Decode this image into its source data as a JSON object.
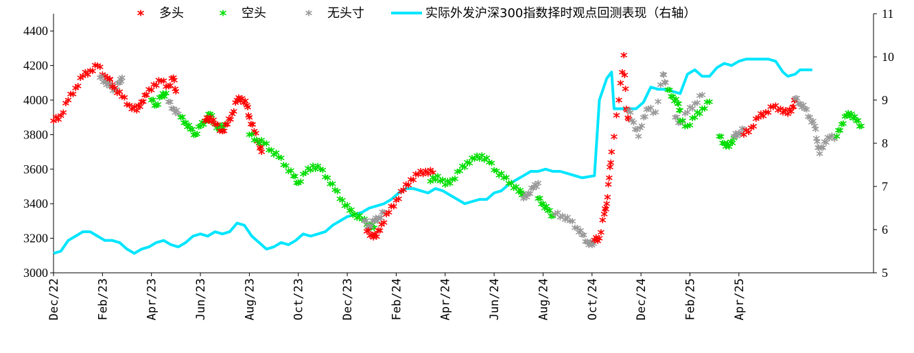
{
  "chart_data": {
    "type": "scatter",
    "left_axis": {
      "range": [
        3000,
        4500
      ],
      "ticks": [
        3000,
        3200,
        3400,
        3600,
        3800,
        4000,
        4200,
        4400
      ]
    },
    "right_axis": {
      "range": [
        5,
        11
      ],
      "ticks": [
        5,
        6,
        7,
        8,
        9,
        10,
        11
      ]
    },
    "x_axis": {
      "range_months": [
        0,
        30
      ],
      "tick_labels": [
        "Dec/22",
        "Feb/23",
        "Apr/23",
        "Jun/23",
        "Aug/23",
        "Oct/23",
        "Dec/23",
        "Feb/24",
        "Apr/24",
        "Jun/24",
        "Aug/24",
        "Oct/24",
        "Dec/24",
        "Feb/25",
        "Apr/25"
      ],
      "tick_months": [
        0,
        2,
        4,
        6,
        8,
        10,
        12,
        14,
        16,
        18,
        20,
        22,
        24,
        26,
        28
      ]
    },
    "grid": false,
    "legend_position": "top",
    "legend": [
      {
        "key": "long",
        "label": "多头",
        "marker": "*",
        "color": "#ff0000"
      },
      {
        "key": "short",
        "label": "空头",
        "marker": "*",
        "color": "#00dd00"
      },
      {
        "key": "neutral",
        "label": "无头寸",
        "marker": "*",
        "color": "#999999"
      },
      {
        "key": "perf",
        "label": "实际外发沪深300指数择时观点回测表现（右轴）",
        "marker": "line",
        "color": "#00e5ff"
      }
    ],
    "price_segments": [
      {
        "state": "long",
        "points": [
          [
            0.0,
            3880
          ],
          [
            0.3,
            3910
          ],
          [
            0.6,
            4000
          ],
          [
            0.9,
            4070
          ],
          [
            1.2,
            4140
          ],
          [
            1.5,
            4170
          ],
          [
            1.8,
            4200
          ],
          [
            2.1,
            4140
          ],
          [
            2.4,
            4090
          ]
        ]
      },
      {
        "state": "neutral",
        "points": [
          [
            1.9,
            4130
          ],
          [
            2.1,
            4110
          ],
          [
            2.3,
            4080
          ],
          [
            2.5,
            4060
          ],
          [
            2.7,
            4100
          ],
          [
            2.8,
            4130
          ]
        ]
      },
      {
        "state": "long",
        "points": [
          [
            2.2,
            4130
          ],
          [
            2.5,
            4070
          ],
          [
            2.8,
            4020
          ],
          [
            3.1,
            3970
          ],
          [
            3.4,
            3940
          ],
          [
            3.6,
            3990
          ],
          [
            3.8,
            4030
          ],
          [
            4.1,
            4090
          ],
          [
            4.4,
            4110
          ],
          [
            4.7,
            4080
          ],
          [
            4.9,
            4130
          ],
          [
            5.0,
            4050
          ]
        ]
      },
      {
        "state": "short",
        "points": [
          [
            4.0,
            4000
          ],
          [
            4.2,
            3970
          ],
          [
            4.4,
            4020
          ],
          [
            4.6,
            4040
          ]
        ]
      },
      {
        "state": "neutral",
        "points": [
          [
            4.7,
            3990
          ],
          [
            4.9,
            3950
          ],
          [
            5.1,
            3920
          ]
        ]
      },
      {
        "state": "short",
        "points": [
          [
            5.2,
            3900
          ],
          [
            5.4,
            3870
          ],
          [
            5.6,
            3830
          ],
          [
            5.8,
            3800
          ],
          [
            6.0,
            3850
          ],
          [
            6.2,
            3880
          ],
          [
            6.4,
            3920
          ],
          [
            6.6,
            3860
          ],
          [
            6.8,
            3830
          ],
          [
            7.0,
            3860
          ]
        ]
      },
      {
        "state": "long",
        "points": [
          [
            6.2,
            3880
          ],
          [
            6.4,
            3900
          ],
          [
            6.6,
            3860
          ],
          [
            6.9,
            3820
          ],
          [
            7.1,
            3860
          ],
          [
            7.3,
            3920
          ],
          [
            7.5,
            4000
          ],
          [
            7.7,
            4010
          ],
          [
            7.9,
            3970
          ],
          [
            8.0,
            3900
          ],
          [
            8.2,
            3820
          ],
          [
            8.4,
            3750
          ],
          [
            8.5,
            3700
          ]
        ]
      },
      {
        "state": "short",
        "points": [
          [
            8.0,
            3800
          ],
          [
            8.3,
            3770
          ],
          [
            8.6,
            3750
          ],
          [
            8.9,
            3710
          ],
          [
            9.2,
            3670
          ],
          [
            9.5,
            3620
          ],
          [
            9.8,
            3560
          ],
          [
            10.0,
            3520
          ],
          [
            10.3,
            3580
          ],
          [
            10.6,
            3620
          ],
          [
            10.9,
            3600
          ],
          [
            11.2,
            3550
          ],
          [
            11.5,
            3480
          ],
          [
            11.8,
            3420
          ],
          [
            12.1,
            3360
          ],
          [
            12.3,
            3340
          ],
          [
            12.6,
            3310
          ],
          [
            12.9,
            3280
          ],
          [
            13.1,
            3260
          ]
        ]
      },
      {
        "state": "neutral",
        "points": [
          [
            12.7,
            3300
          ],
          [
            12.9,
            3270
          ],
          [
            13.1,
            3300
          ],
          [
            13.3,
            3320
          ],
          [
            13.5,
            3350
          ]
        ]
      },
      {
        "state": "long",
        "points": [
          [
            12.8,
            3240
          ],
          [
            13.0,
            3220
          ],
          [
            13.2,
            3210
          ],
          [
            13.4,
            3280
          ],
          [
            13.7,
            3350
          ],
          [
            14.0,
            3420
          ],
          [
            14.3,
            3480
          ],
          [
            14.6,
            3540
          ],
          [
            14.9,
            3570
          ],
          [
            15.2,
            3590
          ],
          [
            15.5,
            3580
          ]
        ]
      },
      {
        "state": "short",
        "points": [
          [
            15.4,
            3530
          ],
          [
            15.7,
            3560
          ],
          [
            16.0,
            3510
          ],
          [
            16.3,
            3540
          ],
          [
            16.6,
            3590
          ],
          [
            16.9,
            3640
          ],
          [
            17.2,
            3660
          ],
          [
            17.5,
            3680
          ],
          [
            17.8,
            3640
          ],
          [
            18.1,
            3590
          ],
          [
            18.4,
            3550
          ],
          [
            18.7,
            3520
          ],
          [
            19.0,
            3470
          ],
          [
            19.2,
            3460
          ]
        ]
      },
      {
        "state": "neutral",
        "points": [
          [
            19.2,
            3430
          ],
          [
            19.4,
            3460
          ],
          [
            19.6,
            3490
          ],
          [
            19.8,
            3520
          ]
        ]
      },
      {
        "state": "short",
        "points": [
          [
            19.8,
            3430
          ],
          [
            20.0,
            3400
          ],
          [
            20.2,
            3360
          ],
          [
            20.4,
            3330
          ]
        ]
      },
      {
        "state": "neutral",
        "points": [
          [
            20.5,
            3340
          ],
          [
            20.8,
            3330
          ],
          [
            21.1,
            3300
          ],
          [
            21.4,
            3260
          ],
          [
            21.6,
            3220
          ],
          [
            21.8,
            3180
          ],
          [
            22.0,
            3160
          ],
          [
            22.1,
            3190
          ]
        ]
      },
      {
        "state": "long",
        "points": [
          [
            22.1,
            3190
          ],
          [
            22.3,
            3200
          ],
          [
            22.5,
            3340
          ],
          [
            22.6,
            3400
          ],
          [
            22.7,
            3550
          ],
          [
            22.8,
            3700
          ],
          [
            23.1,
            4000
          ],
          [
            23.3,
            4260
          ],
          [
            23.4,
            3950
          ],
          [
            23.5,
            3890
          ]
        ]
      },
      {
        "state": "neutral",
        "points": [
          [
            23.5,
            3940
          ],
          [
            23.7,
            3870
          ],
          [
            23.9,
            3790
          ],
          [
            24.1,
            3900
          ],
          [
            24.3,
            3950
          ],
          [
            24.6,
            3930
          ],
          [
            24.9,
            4150
          ],
          [
            25.0,
            4100
          ]
        ]
      },
      {
        "state": "short",
        "points": [
          [
            25.1,
            4060
          ],
          [
            25.3,
            4020
          ],
          [
            25.5,
            3980
          ],
          [
            25.6,
            3940
          ]
        ]
      },
      {
        "state": "neutral",
        "points": [
          [
            25.4,
            3900
          ],
          [
            25.6,
            3870
          ],
          [
            25.9,
            3930
          ],
          [
            26.2,
            3980
          ],
          [
            26.5,
            4030
          ]
        ]
      },
      {
        "state": "short",
        "points": [
          [
            25.6,
            3880
          ],
          [
            25.9,
            3850
          ],
          [
            26.2,
            3900
          ],
          [
            26.5,
            3950
          ],
          [
            26.8,
            3990
          ]
        ]
      },
      {
        "state": "short",
        "points": [
          [
            27.2,
            3790
          ],
          [
            27.4,
            3750
          ],
          [
            27.6,
            3730
          ],
          [
            27.8,
            3780
          ]
        ]
      },
      {
        "state": "neutral",
        "points": [
          [
            27.8,
            3790
          ],
          [
            28.0,
            3810
          ],
          [
            28.2,
            3830
          ]
        ]
      },
      {
        "state": "long",
        "points": [
          [
            28.2,
            3800
          ],
          [
            28.5,
            3840
          ],
          [
            28.8,
            3900
          ],
          [
            29.1,
            3930
          ],
          [
            29.4,
            3960
          ],
          [
            29.7,
            3950
          ],
          [
            30.0,
            3920
          ],
          [
            30.2,
            3960
          ],
          [
            30.3,
            4000
          ]
        ]
      },
      {
        "state": "neutral",
        "points": [
          [
            30.3,
            4010
          ],
          [
            30.5,
            3980
          ],
          [
            30.7,
            3950
          ],
          [
            30.9,
            3900
          ],
          [
            31.1,
            3850
          ],
          [
            31.2,
            3760
          ],
          [
            31.3,
            3690
          ],
          [
            31.5,
            3760
          ],
          [
            31.7,
            3780
          ],
          [
            32.0,
            3790
          ]
        ]
      },
      {
        "state": "short",
        "points": [
          [
            32.0,
            3790
          ],
          [
            32.2,
            3860
          ],
          [
            32.4,
            3910
          ],
          [
            32.6,
            3920
          ],
          [
            32.8,
            3880
          ],
          [
            33.0,
            3850
          ]
        ]
      }
    ],
    "perf_line": [
      [
        0.0,
        5.45
      ],
      [
        0.3,
        5.5
      ],
      [
        0.6,
        5.75
      ],
      [
        0.9,
        5.85
      ],
      [
        1.2,
        5.95
      ],
      [
        1.5,
        5.95
      ],
      [
        1.8,
        5.85
      ],
      [
        2.1,
        5.75
      ],
      [
        2.4,
        5.75
      ],
      [
        2.7,
        5.7
      ],
      [
        3.0,
        5.55
      ],
      [
        3.3,
        5.45
      ],
      [
        3.6,
        5.55
      ],
      [
        3.9,
        5.6
      ],
      [
        4.2,
        5.7
      ],
      [
        4.5,
        5.75
      ],
      [
        4.8,
        5.65
      ],
      [
        5.1,
        5.6
      ],
      [
        5.4,
        5.7
      ],
      [
        5.7,
        5.85
      ],
      [
        6.0,
        5.9
      ],
      [
        6.3,
        5.85
      ],
      [
        6.6,
        5.95
      ],
      [
        6.9,
        5.9
      ],
      [
        7.2,
        5.95
      ],
      [
        7.5,
        6.15
      ],
      [
        7.8,
        6.1
      ],
      [
        8.1,
        5.85
      ],
      [
        8.4,
        5.7
      ],
      [
        8.7,
        5.55
      ],
      [
        9.0,
        5.6
      ],
      [
        9.3,
        5.7
      ],
      [
        9.6,
        5.65
      ],
      [
        9.9,
        5.75
      ],
      [
        10.2,
        5.9
      ],
      [
        10.5,
        5.85
      ],
      [
        10.8,
        5.9
      ],
      [
        11.1,
        5.95
      ],
      [
        11.4,
        6.1
      ],
      [
        11.7,
        6.2
      ],
      [
        12.0,
        6.3
      ],
      [
        12.3,
        6.35
      ],
      [
        12.6,
        6.4
      ],
      [
        12.9,
        6.5
      ],
      [
        13.2,
        6.55
      ],
      [
        13.5,
        6.6
      ],
      [
        13.8,
        6.7
      ],
      [
        14.1,
        6.85
      ],
      [
        14.4,
        6.95
      ],
      [
        14.7,
        6.95
      ],
      [
        15.0,
        6.9
      ],
      [
        15.3,
        6.85
      ],
      [
        15.6,
        6.95
      ],
      [
        15.9,
        6.9
      ],
      [
        16.2,
        6.8
      ],
      [
        16.5,
        6.7
      ],
      [
        16.8,
        6.6
      ],
      [
        17.1,
        6.65
      ],
      [
        17.4,
        6.7
      ],
      [
        17.7,
        6.7
      ],
      [
        18.0,
        6.85
      ],
      [
        18.3,
        6.9
      ],
      [
        18.6,
        7.05
      ],
      [
        18.9,
        7.15
      ],
      [
        19.2,
        7.25
      ],
      [
        19.5,
        7.35
      ],
      [
        19.8,
        7.35
      ],
      [
        20.1,
        7.4
      ],
      [
        20.4,
        7.35
      ],
      [
        20.7,
        7.35
      ],
      [
        21.0,
        7.3
      ],
      [
        21.3,
        7.25
      ],
      [
        21.6,
        7.2
      ],
      [
        22.1,
        7.25
      ],
      [
        22.3,
        9.0
      ],
      [
        22.6,
        9.5
      ],
      [
        22.8,
        9.65
      ],
      [
        22.9,
        8.8
      ],
      [
        23.2,
        8.8
      ],
      [
        23.5,
        8.8
      ],
      [
        23.8,
        8.8
      ],
      [
        24.1,
        8.95
      ],
      [
        24.4,
        9.3
      ],
      [
        24.7,
        9.25
      ],
      [
        25.0,
        9.25
      ],
      [
        25.3,
        9.2
      ],
      [
        25.6,
        9.15
      ],
      [
        25.9,
        9.6
      ],
      [
        26.2,
        9.7
      ],
      [
        26.5,
        9.55
      ],
      [
        26.8,
        9.55
      ],
      [
        27.1,
        9.75
      ],
      [
        27.4,
        9.85
      ],
      [
        27.7,
        9.8
      ],
      [
        28.0,
        9.9
      ],
      [
        28.3,
        9.95
      ],
      [
        28.6,
        9.95
      ],
      [
        28.9,
        9.95
      ],
      [
        29.2,
        9.95
      ],
      [
        29.5,
        9.9
      ],
      [
        29.8,
        9.65
      ],
      [
        30.0,
        9.55
      ],
      [
        30.3,
        9.6
      ],
      [
        30.5,
        9.7
      ],
      [
        31.0,
        9.7
      ]
    ]
  }
}
